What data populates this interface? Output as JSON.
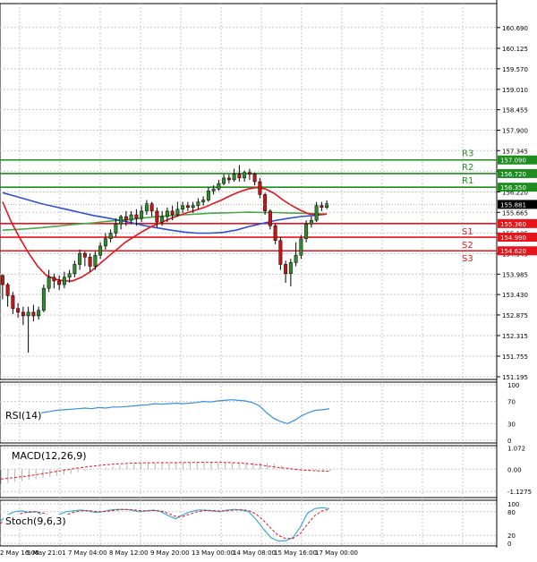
{
  "colors": {
    "background": "#ffffff",
    "grid": "#c8c8c8",
    "border": "#000000",
    "bull_body": "#2e8b2e",
    "bear_body": "#c81414",
    "wick": "#000000",
    "ma_red": "#e8141c",
    "ma_blue": "#2d4fd6",
    "ma_green": "#4aa84a",
    "resistance": "#1e8c1e",
    "support": "#e8141c",
    "price_tag": "#000000",
    "rsi": "#3a8fd8",
    "macd_hist": "#b4b4b4",
    "macd_signal": "#e8141c",
    "stoch_main": "#3aaadc",
    "stoch_signal": "#e8141c"
  },
  "chart_data": [
    {
      "type": "candlestick",
      "panel": "price",
      "ylim": [
        151.195,
        161.05
      ],
      "y_ticks": [
        "160.690",
        "160.125",
        "159.570",
        "159.010",
        "158.455",
        "157.900",
        "157.345",
        "156.785",
        "156.220",
        "155.665",
        "155.105",
        "154.545",
        "153.985",
        "153.430",
        "152.875",
        "152.315",
        "151.755",
        "151.195"
      ],
      "x_tick_labels": [
        "2 May 16:00",
        "5 May 21:01",
        "7 May 04:00",
        "8 May 12:00",
        "9 May 20:00",
        "13 May 00:00",
        "14 May 08:00",
        "15 May 16:00",
        "17 May 00:00"
      ],
      "last_price": "155.881",
      "levels": [
        {
          "name": "R3",
          "value": 157.09,
          "value_label": "157.090",
          "kind": "resistance"
        },
        {
          "name": "R2",
          "value": 156.72,
          "value_label": "156.720",
          "kind": "resistance"
        },
        {
          "name": "R1",
          "value": 156.35,
          "value_label": "156.350",
          "kind": "resistance"
        },
        {
          "name": "S1",
          "value": 155.36,
          "value_label": "155.360",
          "kind": "support"
        },
        {
          "name": "S2",
          "value": 154.99,
          "value_label": "154.990",
          "kind": "support"
        },
        {
          "name": "S3",
          "value": 154.62,
          "value_label": "154.620",
          "kind": "support"
        }
      ],
      "candles": [
        [
          153.95,
          153.7,
          153.98,
          153.3
        ],
        [
          153.7,
          153.4,
          153.75,
          153.1
        ],
        [
          153.4,
          153.05,
          153.5,
          152.9
        ],
        [
          153.05,
          152.95,
          153.2,
          152.8
        ],
        [
          152.95,
          152.85,
          153.1,
          152.6
        ],
        [
          152.85,
          152.95,
          153.1,
          151.85
        ],
        [
          152.95,
          152.85,
          153.15,
          152.7
        ],
        [
          152.85,
          153.0,
          153.1,
          152.75
        ],
        [
          153.0,
          153.6,
          153.7,
          152.95
        ],
        [
          153.6,
          153.9,
          154.1,
          153.5
        ],
        [
          153.9,
          153.8,
          154.0,
          153.6
        ],
        [
          153.8,
          153.7,
          153.95,
          153.55
        ],
        [
          153.7,
          153.9,
          154.05,
          153.6
        ],
        [
          153.9,
          154.0,
          154.1,
          153.75
        ],
        [
          154.0,
          154.25,
          154.35,
          153.9
        ],
        [
          154.25,
          154.55,
          154.65,
          154.1
        ],
        [
          154.55,
          154.45,
          154.6,
          154.2
        ],
        [
          154.45,
          154.2,
          154.55,
          154.05
        ],
        [
          154.2,
          154.5,
          154.6,
          154.1
        ],
        [
          154.5,
          154.75,
          154.85,
          154.4
        ],
        [
          154.75,
          154.95,
          155.1,
          154.65
        ],
        [
          154.95,
          155.1,
          155.2,
          154.85
        ],
        [
          155.1,
          155.35,
          155.5,
          155.0
        ],
        [
          155.35,
          155.55,
          155.6,
          155.2
        ],
        [
          155.55,
          155.45,
          155.7,
          155.3
        ],
        [
          155.45,
          155.6,
          155.7,
          155.35
        ],
        [
          155.6,
          155.5,
          155.75,
          155.3
        ],
        [
          155.5,
          155.7,
          155.85,
          155.4
        ],
        [
          155.7,
          155.9,
          156.0,
          155.6
        ],
        [
          155.9,
          155.7,
          155.95,
          155.55
        ],
        [
          155.7,
          155.4,
          155.8,
          155.25
        ],
        [
          155.4,
          155.55,
          155.7,
          155.3
        ],
        [
          155.55,
          155.7,
          155.8,
          155.4
        ],
        [
          155.7,
          155.6,
          155.85,
          155.45
        ],
        [
          155.6,
          155.75,
          155.95,
          155.55
        ],
        [
          155.75,
          155.85,
          155.95,
          155.65
        ],
        [
          155.85,
          155.8,
          155.95,
          155.7
        ],
        [
          155.8,
          155.85,
          155.95,
          155.65
        ],
        [
          155.85,
          155.95,
          156.05,
          155.75
        ],
        [
          155.95,
          156.0,
          156.1,
          155.85
        ],
        [
          156.0,
          156.25,
          156.35,
          155.95
        ],
        [
          156.25,
          156.3,
          156.4,
          156.15
        ],
        [
          156.3,
          156.45,
          156.55,
          156.25
        ],
        [
          156.45,
          156.6,
          156.7,
          156.4
        ],
        [
          156.6,
          156.55,
          156.7,
          156.45
        ],
        [
          156.55,
          156.7,
          156.85,
          156.5
        ],
        [
          156.7,
          156.6,
          156.95,
          156.5
        ],
        [
          156.6,
          156.75,
          156.8,
          156.5
        ],
        [
          156.75,
          156.7,
          156.85,
          156.55
        ],
        [
          156.7,
          156.5,
          156.75,
          156.4
        ],
        [
          156.5,
          156.15,
          156.6,
          156.05
        ],
        [
          156.15,
          155.7,
          156.2,
          155.6
        ],
        [
          155.7,
          155.3,
          155.75,
          155.2
        ],
        [
          155.3,
          154.9,
          155.35,
          154.8
        ],
        [
          154.9,
          154.25,
          155.0,
          154.1
        ],
        [
          154.25,
          154.0,
          154.35,
          153.75
        ],
        [
          154.0,
          154.3,
          154.4,
          153.65
        ],
        [
          154.3,
          154.5,
          154.85,
          154.2
        ],
        [
          154.5,
          154.95,
          155.05,
          154.4
        ],
        [
          154.95,
          155.35,
          155.45,
          154.85
        ],
        [
          155.35,
          155.45,
          155.55,
          155.25
        ],
        [
          155.45,
          155.85,
          155.95,
          155.4
        ],
        [
          155.85,
          155.8,
          155.95,
          155.7
        ],
        [
          155.8,
          155.9,
          155.99,
          155.75
        ]
      ],
      "ma_red": [
        155.95,
        155.4,
        154.95,
        154.55,
        154.2,
        153.95,
        153.85,
        153.8,
        153.8,
        153.9,
        154.05,
        154.25,
        154.45,
        154.65,
        154.85,
        155.0,
        155.15,
        155.28,
        155.38,
        155.48,
        155.57,
        155.65,
        155.72,
        155.8,
        155.9,
        156.0,
        156.12,
        156.22,
        156.3,
        156.34,
        156.3,
        156.18,
        156.0,
        155.85,
        155.72,
        155.62,
        155.6,
        155.62
      ],
      "ma_blue": [
        156.2,
        156.1,
        156.0,
        155.9,
        155.82,
        155.74,
        155.66,
        155.58,
        155.52,
        155.45,
        155.38,
        155.3,
        155.24,
        155.18,
        155.13,
        155.1,
        155.1,
        155.12,
        155.18,
        155.28,
        155.36,
        155.44,
        155.5,
        155.55,
        155.58,
        155.62
      ],
      "ma_green": [
        155.18,
        155.2,
        155.22,
        155.25,
        155.28,
        155.32,
        155.35,
        155.38,
        155.42,
        155.45,
        155.48,
        155.52,
        155.55,
        155.58,
        155.6,
        155.62,
        155.64,
        155.65,
        155.66,
        155.67,
        155.66,
        155.66,
        155.65,
        155.64,
        155.63,
        155.62
      ]
    },
    {
      "type": "line",
      "panel": "rsi",
      "label": "RSI(14)",
      "ylim": [
        0,
        100
      ],
      "y_ticks": [
        "100",
        "70",
        "30",
        "0"
      ],
      "values": [
        48,
        50,
        52,
        54,
        55,
        56,
        57,
        58,
        57,
        59,
        58,
        60,
        60,
        61,
        62,
        63,
        64,
        66,
        65,
        66,
        67,
        66,
        67,
        68,
        70,
        69,
        71,
        72,
        73,
        72,
        71,
        68,
        62,
        50,
        40,
        34,
        30,
        36,
        44,
        50,
        54,
        55,
        57
      ]
    },
    {
      "type": "bar",
      "panel": "macd",
      "label": "MACD(12,26,9)",
      "ylim": [
        -1.3,
        1.1
      ],
      "y_ticks": [
        "1.072",
        "0.00",
        "-1.1275"
      ],
      "histogram": [
        -0.75,
        -0.7,
        -0.65,
        -0.6,
        -0.55,
        -0.5,
        -0.45,
        -0.4,
        -0.34,
        -0.28,
        -0.22,
        -0.16,
        -0.1,
        -0.04,
        0.02,
        0.08,
        0.13,
        0.18,
        0.22,
        0.25,
        0.28,
        0.3,
        0.31,
        0.32,
        0.32,
        0.33,
        0.33,
        0.33,
        0.34,
        0.34,
        0.34,
        0.34,
        0.34,
        0.34,
        0.35,
        0.35,
        0.35,
        0.34,
        0.32,
        0.26,
        0.18,
        0.1,
        0.04,
        -0.02,
        -0.05,
        -0.08,
        -0.09,
        -0.1
      ],
      "signal": [
        -0.5,
        -0.42,
        -0.33,
        -0.22,
        -0.1,
        0.02,
        0.12,
        0.2,
        0.26,
        0.3,
        0.32,
        0.33,
        0.33,
        0.34,
        0.35,
        0.35,
        0.34,
        0.3,
        0.22,
        0.12,
        0.04,
        -0.04,
        -0.08,
        -0.1
      ]
    },
    {
      "type": "line",
      "panel": "stoch",
      "label": "Stoch(9,6,3)",
      "ylim": [
        0,
        100
      ],
      "y_ticks": [
        "100",
        "80",
        "20",
        "0"
      ],
      "main": [
        55,
        72,
        80,
        82,
        78,
        80,
        68,
        60,
        72,
        80,
        82,
        84,
        82,
        78,
        80,
        84,
        86,
        86,
        84,
        80,
        82,
        84,
        80,
        70,
        62,
        72,
        80,
        84,
        84,
        82,
        80,
        84,
        86,
        84,
        80,
        60,
        36,
        14,
        6,
        6,
        14,
        40,
        76,
        88,
        90,
        88
      ],
      "signal": [
        50,
        60,
        70,
        76,
        80,
        80,
        76,
        68,
        66,
        72,
        78,
        82,
        83,
        81,
        80,
        82,
        84,
        86,
        85,
        83,
        82,
        83,
        82,
        76,
        68,
        68,
        74,
        80,
        83,
        83,
        82,
        82,
        84,
        85,
        83,
        74,
        58,
        38,
        20,
        12,
        12,
        24,
        48,
        70,
        82,
        86
      ]
    }
  ]
}
